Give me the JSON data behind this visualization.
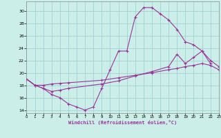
{
  "xlabel": "Windchill (Refroidissement éolien,°C)",
  "background_color": "#cceee8",
  "grid_color": "#99cccc",
  "line_color": "#993399",
  "xlim": [
    0,
    23
  ],
  "ylim": [
    13.5,
    31.5
  ],
  "yticks": [
    14,
    16,
    18,
    20,
    22,
    24,
    26,
    28,
    30
  ],
  "xticks": [
    0,
    1,
    2,
    3,
    4,
    5,
    6,
    7,
    8,
    9,
    10,
    11,
    12,
    13,
    14,
    15,
    16,
    17,
    18,
    19,
    20,
    21,
    22,
    23
  ],
  "line1_x": [
    0,
    1,
    2,
    3,
    4,
    5,
    6,
    7,
    8,
    9,
    10,
    11,
    12,
    13,
    14,
    15,
    16,
    17,
    18,
    19,
    20,
    21,
    22
  ],
  "line1_y": [
    19.0,
    18.0,
    17.5,
    16.5,
    16.0,
    15.0,
    14.5,
    14.0,
    14.5,
    17.5,
    20.5,
    23.5,
    23.5,
    29.0,
    30.5,
    30.5,
    29.5,
    28.5,
    27.0,
    25.0,
    24.5,
    23.5,
    21.5
  ],
  "line2_x": [
    0,
    1,
    2,
    3,
    4,
    5,
    9,
    11,
    13,
    15,
    17,
    18,
    19,
    20,
    21,
    22,
    23
  ],
  "line2_y": [
    19.0,
    18.0,
    18.0,
    18.2,
    18.3,
    18.4,
    18.8,
    19.2,
    19.6,
    20.0,
    20.5,
    20.7,
    21.0,
    21.2,
    21.5,
    21.2,
    20.5
  ],
  "line3_x": [
    0,
    1,
    2,
    3,
    4,
    5,
    9,
    11,
    13,
    15,
    17,
    18,
    19,
    20,
    21,
    22,
    23
  ],
  "line3_y": [
    19.0,
    18.0,
    17.5,
    17.0,
    17.2,
    17.5,
    18.2,
    18.7,
    19.5,
    20.2,
    21.0,
    23.0,
    21.5,
    22.5,
    23.5,
    22.0,
    21.0
  ]
}
